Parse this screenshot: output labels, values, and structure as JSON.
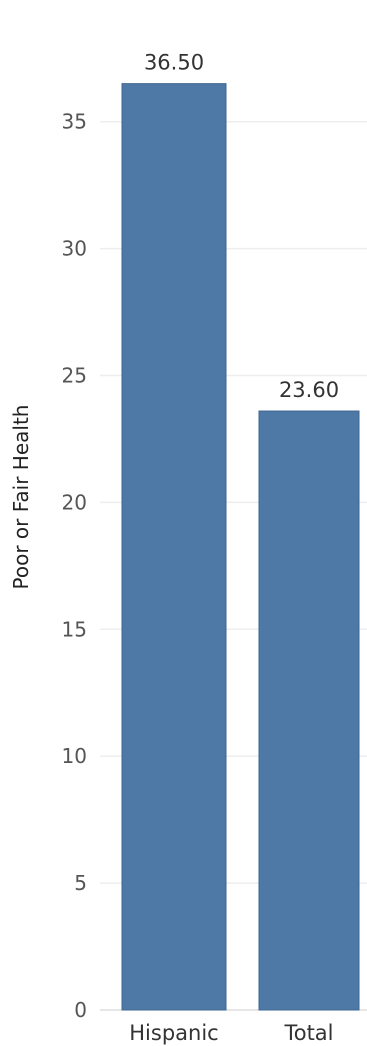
{
  "chart_data": {
    "type": "bar",
    "categories": [
      "Hispanic",
      "Total"
    ],
    "values": [
      36.5,
      23.6
    ],
    "value_labels": [
      "36.50",
      "23.60"
    ],
    "title": "",
    "xlabel": "",
    "ylabel": "Poor or Fair Health",
    "ylim": [
      0,
      37
    ],
    "yticks": [
      0,
      5,
      10,
      15,
      20,
      25,
      30,
      35
    ],
    "grid": true,
    "bar_color": "#4e79a7"
  }
}
